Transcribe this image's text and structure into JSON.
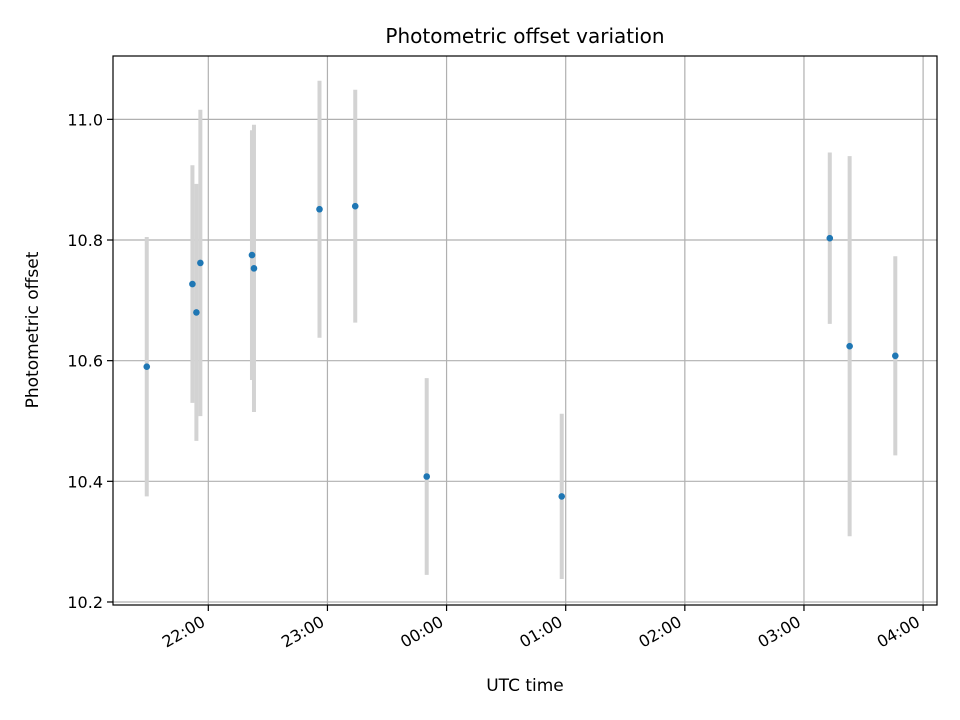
{
  "chart_data": {
    "type": "scatter",
    "title": "Photometric offset variation",
    "xlabel": "UTC time",
    "ylabel": "Photometric offset",
    "x_ticks": [
      "22:00",
      "23:00",
      "00:00",
      "01:00",
      "02:00",
      "03:00",
      "04:00"
    ],
    "y_ticks": [
      "10.2",
      "10.4",
      "10.6",
      "10.8",
      "11.0"
    ],
    "xlim_minutes_after_22_00": [
      -48,
      367
    ],
    "ylim": [
      10.195,
      11.105
    ],
    "grid": true,
    "colors": {
      "point": "#1f77b4",
      "errorbar": "#d3d3d3",
      "grid": "#b0b0b0"
    },
    "points": [
      {
        "time": "21:29",
        "value": 10.59,
        "err": 0.215
      },
      {
        "time": "21:52",
        "value": 10.727,
        "err": 0.197
      },
      {
        "time": "21:54",
        "value": 10.68,
        "err": 0.213
      },
      {
        "time": "21:56",
        "value": 10.762,
        "err": 0.254
      },
      {
        "time": "22:22",
        "value": 10.775,
        "err": 0.207
      },
      {
        "time": "22:23",
        "value": 10.753,
        "err": 0.238
      },
      {
        "time": "22:56",
        "value": 10.851,
        "err": 0.213
      },
      {
        "time": "23:14",
        "value": 10.856,
        "err": 0.193
      },
      {
        "time": "23:50",
        "value": 10.408,
        "err": 0.163
      },
      {
        "time": "00:58",
        "value": 10.375,
        "err": 0.137
      },
      {
        "time": "03:13",
        "value": 10.803,
        "err": 0.142
      },
      {
        "time": "03:23",
        "value": 10.624,
        "err": 0.315
      },
      {
        "time": "03:46",
        "value": 10.608,
        "err": 0.165
      }
    ]
  }
}
